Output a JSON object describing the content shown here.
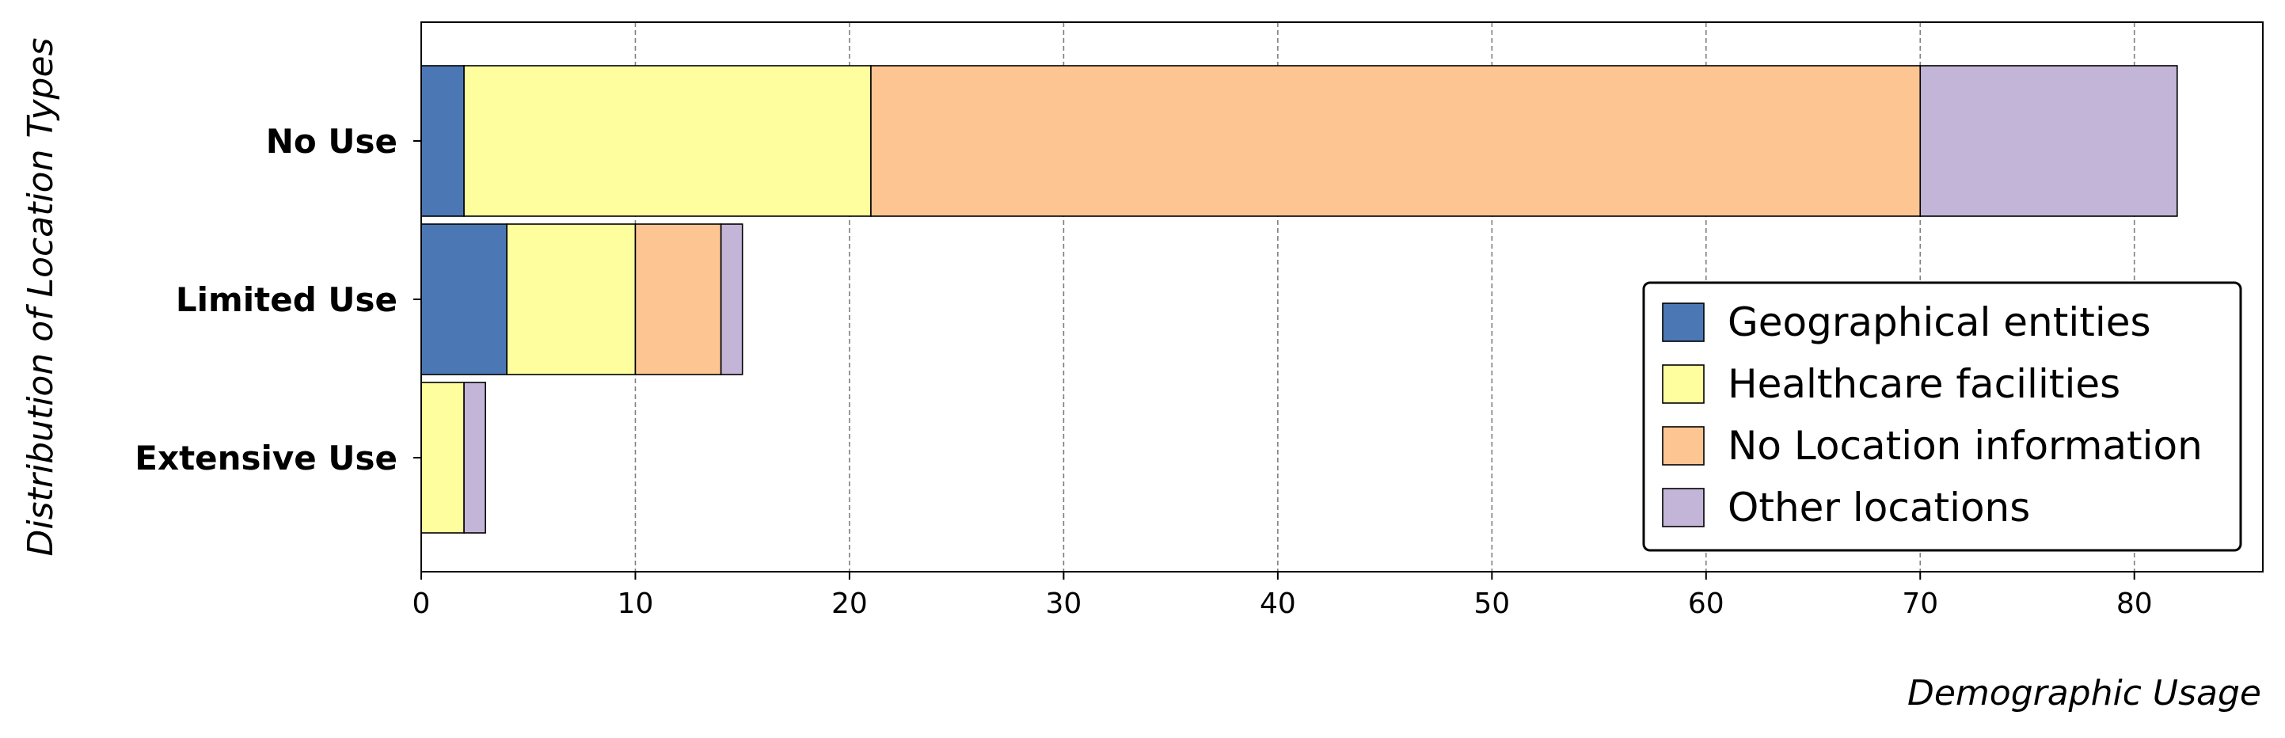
{
  "chart_data": {
    "type": "bar",
    "orientation": "horizontal",
    "stacked": true,
    "xlabel": "Demographic Usage",
    "ylabel": "Distribution of Location Types",
    "categories": [
      "No Use",
      "Limited Use",
      "Extensive Use"
    ],
    "xlim": [
      0,
      86
    ],
    "xticks": [
      0,
      10,
      20,
      30,
      40,
      50,
      60,
      70,
      80
    ],
    "grid": "vertical dashed",
    "legend_position": "right",
    "series": [
      {
        "name": "Geographical entities",
        "color": "#4b78b5",
        "values": [
          2,
          4,
          0
        ]
      },
      {
        "name": "Healthcare facilities",
        "color": "#fefe9f",
        "values": [
          19,
          6,
          2
        ]
      },
      {
        "name": "No Location information",
        "color": "#fdc592",
        "values": [
          49,
          4,
          0
        ]
      },
      {
        "name": "Other locations",
        "color": "#c3b5d8",
        "values": [
          12,
          1,
          1
        ]
      }
    ]
  }
}
